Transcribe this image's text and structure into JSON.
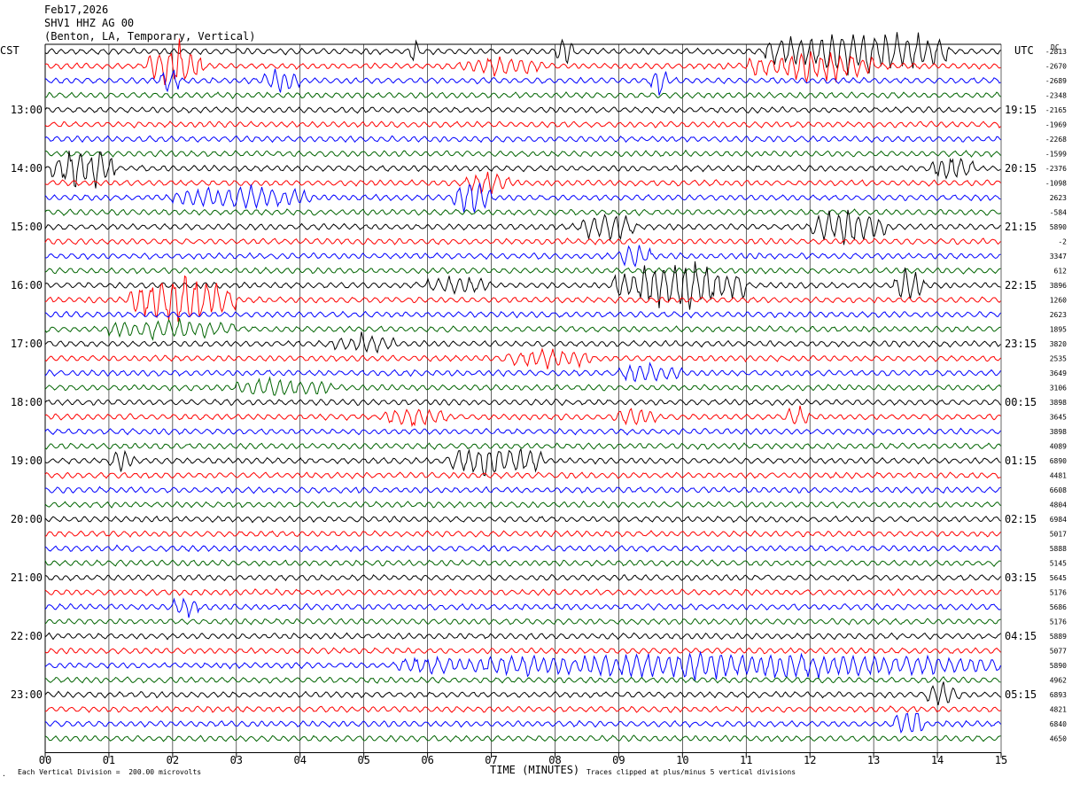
{
  "header": {
    "date": "Feb17,2026",
    "station": "SHV1 HHZ AG 00",
    "location": "(Benton, LA, Temporary, Vertical)"
  },
  "left_zone": "CST",
  "right_zone": "UTC",
  "dc_label": "DC",
  "footer": {
    "scale_note": "Each Vertical Division =  200.00 microvolts",
    "clip_note": "Traces clipped at plus/minus 5 vertical divisions",
    "corner_mark": "·"
  },
  "colors": {
    "trace_cycle": [
      "#000000",
      "#ff0000",
      "#0000ff",
      "#006400"
    ],
    "grid": "#000000"
  },
  "chart_data": {
    "type": "line",
    "title": "Feb17,2026",
    "xlabel": "TIME (MINUTES)",
    "xlim": [
      0,
      15
    ],
    "x_ticks": [
      "00",
      "01",
      "02",
      "03",
      "04",
      "05",
      "06",
      "07",
      "08",
      "09",
      "10",
      "11",
      "12",
      "13",
      "14",
      "15"
    ],
    "trace_count": 48,
    "left_hour_labels": [
      "13:00",
      "14:00",
      "15:00",
      "16:00",
      "17:00",
      "18:00",
      "19:00",
      "20:00",
      "21:00",
      "22:00",
      "23:00"
    ],
    "right_hour_labels": [
      "19:15",
      "20:15",
      "21:15",
      "22:15",
      "23:15",
      "00:15",
      "01:15",
      "02:15",
      "03:15",
      "04:15",
      "05:15"
    ],
    "dc_offsets": [
      "-2813",
      "-2670",
      "-2689",
      "-2348",
      "-2165",
      "-1969",
      "-2268",
      "-1599",
      "-2376",
      "-1098",
      "2623",
      "-584",
      "5890",
      "-2",
      "3347",
      "612",
      "3896",
      "1260",
      "2623",
      "1895",
      "3820",
      "2535",
      "3649",
      "3106",
      "3898",
      "3645",
      "3898",
      "4089",
      "6890",
      "4481",
      "6608",
      "4804",
      "6984",
      "5017",
      "5888",
      "5145",
      "5645",
      "5176",
      "5686",
      "5176",
      "5889",
      "5077",
      "5890",
      "4962",
      "6893",
      "4821",
      "6840",
      "4650"
    ],
    "events": [
      {
        "trace": 0,
        "start_min": 11.3,
        "end_min": 14.2,
        "amp": 2.2
      },
      {
        "trace": 0,
        "start_min": 8.0,
        "end_min": 8.3,
        "amp": 1.5
      },
      {
        "trace": 0,
        "start_min": 5.7,
        "end_min": 5.9,
        "amp": 1.2
      },
      {
        "trace": 1,
        "start_min": 1.6,
        "end_min": 2.5,
        "amp": 2.5
      },
      {
        "trace": 1,
        "start_min": 11.0,
        "end_min": 13.0,
        "amp": 1.6
      },
      {
        "trace": 1,
        "start_min": 6.5,
        "end_min": 7.8,
        "amp": 0.8
      },
      {
        "trace": 2,
        "start_min": 1.8,
        "end_min": 2.1,
        "amp": 1.6
      },
      {
        "trace": 2,
        "start_min": 9.5,
        "end_min": 9.8,
        "amp": 1.5
      },
      {
        "trace": 2,
        "start_min": 3.4,
        "end_min": 4.0,
        "amp": 1.0
      },
      {
        "trace": 8,
        "start_min": 0.1,
        "end_min": 1.1,
        "amp": 2.3
      },
      {
        "trace": 8,
        "start_min": 13.9,
        "end_min": 14.6,
        "amp": 1.3
      },
      {
        "trace": 9,
        "start_min": 6.6,
        "end_min": 7.3,
        "amp": 1.0
      },
      {
        "trace": 10,
        "start_min": 2.0,
        "end_min": 4.2,
        "amp": 1.0
      },
      {
        "trace": 10,
        "start_min": 6.4,
        "end_min": 7.0,
        "amp": 1.6
      },
      {
        "trace": 12,
        "start_min": 8.4,
        "end_min": 9.3,
        "amp": 1.4
      },
      {
        "trace": 12,
        "start_min": 12.0,
        "end_min": 13.2,
        "amp": 1.8
      },
      {
        "trace": 14,
        "start_min": 9.0,
        "end_min": 9.5,
        "amp": 1.4
      },
      {
        "trace": 16,
        "start_min": 8.9,
        "end_min": 11.0,
        "amp": 2.4
      },
      {
        "trace": 16,
        "start_min": 13.3,
        "end_min": 13.8,
        "amp": 1.8
      },
      {
        "trace": 16,
        "start_min": 6.0,
        "end_min": 7.0,
        "amp": 0.9
      },
      {
        "trace": 17,
        "start_min": 1.3,
        "end_min": 3.0,
        "amp": 2.6
      },
      {
        "trace": 19,
        "start_min": 1.0,
        "end_min": 3.0,
        "amp": 0.9
      },
      {
        "trace": 20,
        "start_min": 4.5,
        "end_min": 5.5,
        "amp": 0.8
      },
      {
        "trace": 21,
        "start_min": 7.2,
        "end_min": 8.6,
        "amp": 0.8
      },
      {
        "trace": 22,
        "start_min": 9.0,
        "end_min": 10.0,
        "amp": 0.8
      },
      {
        "trace": 23,
        "start_min": 3.0,
        "end_min": 4.5,
        "amp": 0.8
      },
      {
        "trace": 25,
        "start_min": 5.3,
        "end_min": 6.3,
        "amp": 0.9
      },
      {
        "trace": 25,
        "start_min": 8.9,
        "end_min": 9.6,
        "amp": 0.9
      },
      {
        "trace": 25,
        "start_min": 11.6,
        "end_min": 12.0,
        "amp": 1.0
      },
      {
        "trace": 28,
        "start_min": 6.3,
        "end_min": 7.8,
        "amp": 1.7
      },
      {
        "trace": 28,
        "start_min": 1.0,
        "end_min": 1.4,
        "amp": 1.0
      },
      {
        "trace": 38,
        "start_min": 2.0,
        "end_min": 2.4,
        "amp": 1.0
      },
      {
        "trace": 42,
        "start_min": 5.5,
        "end_min": 15.0,
        "amp": 1.2
      },
      {
        "trace": 44,
        "start_min": 13.8,
        "end_min": 14.4,
        "amp": 0.9
      },
      {
        "trace": 46,
        "start_min": 13.3,
        "end_min": 13.8,
        "amp": 1.5
      }
    ]
  }
}
